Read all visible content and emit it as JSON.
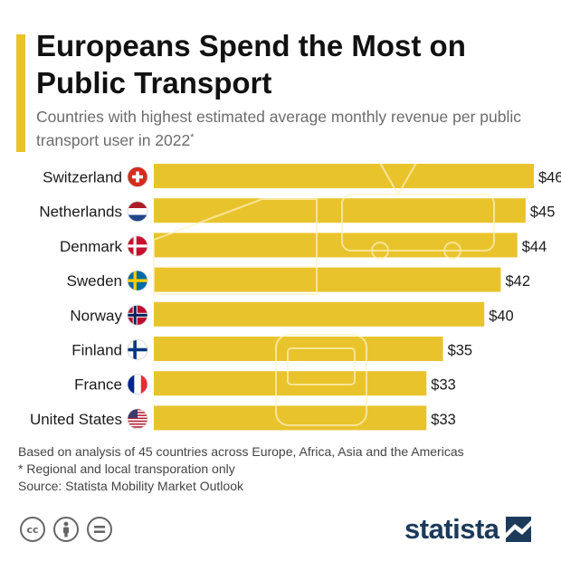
{
  "header": {
    "title": "Europeans Spend the Most on Public Transport",
    "subtitle": "Countries with highest estimated average monthly revenue per public transport user in 2022",
    "subtitle_mark": "*"
  },
  "chart_data": {
    "type": "bar",
    "orientation": "horizontal",
    "title": "Europeans Spend the Most on Public Transport",
    "xlabel": "",
    "ylabel": "",
    "unit_prefix": "$",
    "xlim": [
      0,
      46
    ],
    "grid": false,
    "categories": [
      "Switzerland",
      "Netherlands",
      "Denmark",
      "Sweden",
      "Norway",
      "Finland",
      "France",
      "United States"
    ],
    "values": [
      46,
      45,
      44,
      42,
      40,
      35,
      33,
      33
    ],
    "value_labels": [
      "$46",
      "$45",
      "$44",
      "$42",
      "$40",
      "$35",
      "$33",
      "$33"
    ],
    "flags": [
      "switzerland-flag-icon",
      "netherlands-flag-icon",
      "denmark-flag-icon",
      "sweden-flag-icon",
      "norway-flag-icon",
      "finland-flag-icon",
      "france-flag-icon",
      "united-states-flag-icon"
    ],
    "bar_color": "#e8c32c"
  },
  "footer": {
    "notes": [
      "Based on analysis of 45 countries across Europe, Africa, Asia and the Americas",
      "* Regional and local transporation only",
      "Source: Statista Mobility Market Outlook"
    ],
    "license_icons": [
      "creative-commons-icon",
      "attribution-icon",
      "no-derivatives-icon"
    ],
    "brand": "statista"
  },
  "colors": {
    "accent": "#e8c32c",
    "brand": "#1c3a5a",
    "subtitle": "#6c6c6c"
  }
}
